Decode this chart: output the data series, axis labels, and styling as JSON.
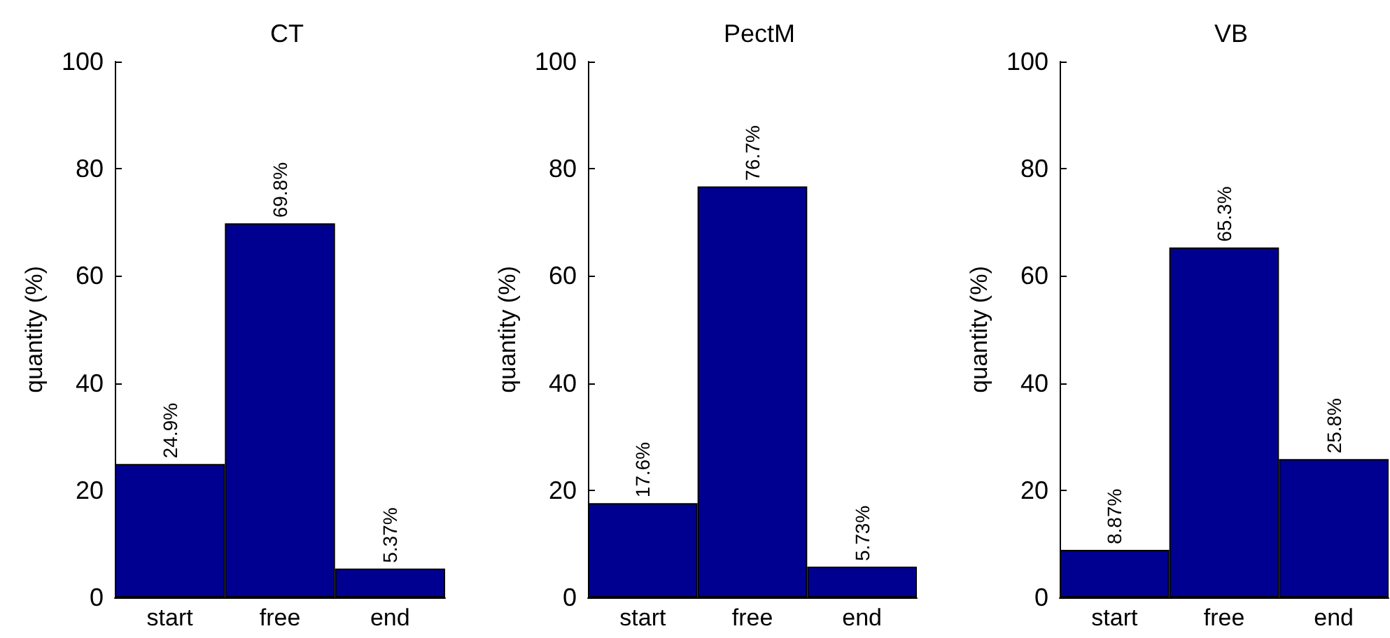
{
  "chart_data": [
    {
      "type": "bar",
      "title": "CT",
      "ylabel": "quantity (%)",
      "categories": [
        "start",
        "free",
        "end"
      ],
      "values": [
        24.9,
        69.8,
        5.37
      ],
      "value_labels": [
        "24.9%",
        "69.8%",
        "5.37%"
      ],
      "color": "#000090",
      "ylim": [
        0,
        100
      ],
      "yticks": [
        0,
        20,
        40,
        60,
        80,
        100
      ],
      "grid": false
    },
    {
      "type": "bar",
      "title": "PectM",
      "ylabel": "quantity (%)",
      "categories": [
        "start",
        "free",
        "end"
      ],
      "values": [
        17.6,
        76.7,
        5.73
      ],
      "value_labels": [
        "17.6%",
        "76.7%",
        "5.73%"
      ],
      "color": "#000090",
      "ylim": [
        0,
        100
      ],
      "yticks": [
        0,
        20,
        40,
        60,
        80,
        100
      ],
      "grid": false
    },
    {
      "type": "bar",
      "title": "VB",
      "ylabel": "quantity (%)",
      "categories": [
        "start",
        "free",
        "end"
      ],
      "values": [
        8.87,
        65.3,
        25.8
      ],
      "value_labels": [
        "8.87%",
        "65.3%",
        "25.8%"
      ],
      "color": "#000090",
      "ylim": [
        0,
        100
      ],
      "yticks": [
        0,
        20,
        40,
        60,
        80,
        100
      ],
      "grid": false
    }
  ]
}
